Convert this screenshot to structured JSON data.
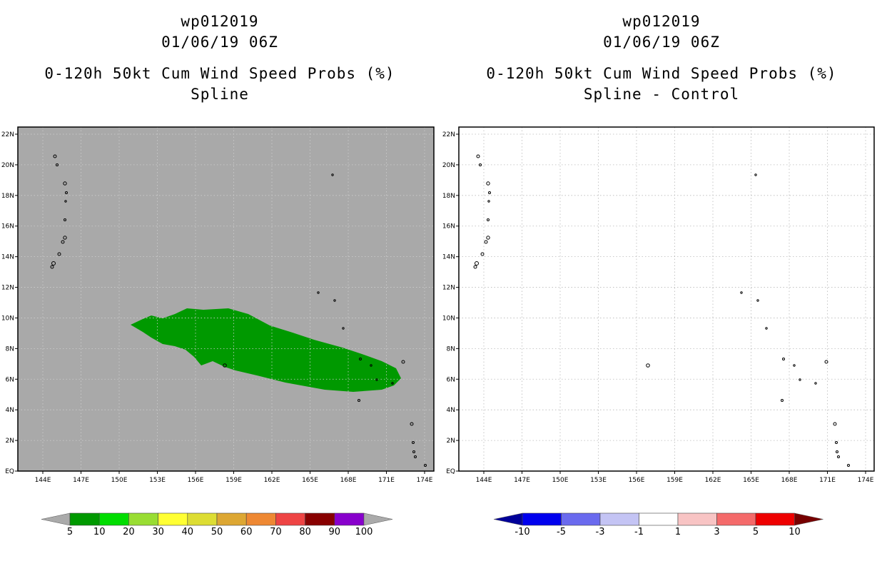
{
  "left_panel": {
    "title": "wp012019",
    "datetime": "01/06/19 06Z",
    "subtitle": "0-120h 50kt Cum Wind Speed Probs (%)",
    "method": "Spline",
    "background_color": "#a9a9a9",
    "probability_fill_color": "#009900"
  },
  "right_panel": {
    "title": "wp012019",
    "datetime": "01/06/19 06Z",
    "subtitle": "0-120h 50kt Cum Wind Speed Probs (%)",
    "method": "Spline - Control",
    "background_color": "#ffffff"
  },
  "map": {
    "lat_labels": [
      "22N",
      "20N",
      "18N",
      "16N",
      "14N",
      "12N",
      "10N",
      "8N",
      "6N",
      "4N",
      "2N",
      "EQ"
    ],
    "lon_labels": [
      "144E",
      "147E",
      "150E",
      "153E",
      "156E",
      "159E",
      "162E",
      "165E",
      "168E",
      "171E",
      "174E"
    ]
  },
  "left_colorbar": {
    "labels": [
      "5",
      "10",
      "20",
      "30",
      "40",
      "50",
      "60",
      "70",
      "80",
      "90",
      "100"
    ],
    "colors": [
      "#009900",
      "#00dd00",
      "#99dd33",
      "#ffff33",
      "#dddd33",
      "#dda733",
      "#ee8833",
      "#ee4444",
      "#880000",
      "#8800cc"
    ],
    "end_color": "#aaaaaa"
  },
  "right_colorbar": {
    "labels": [
      "-10",
      "-5",
      "-3",
      "-1",
      "1",
      "3",
      "5",
      "10"
    ],
    "colors": [
      "#0000ee",
      "#6a6aee",
      "#c4c4f4",
      "#ffffff",
      "#f8c4c4",
      "#f46a6a",
      "#ee0000"
    ],
    "low_end_color": "#000099",
    "high_end_color": "#770000"
  }
}
